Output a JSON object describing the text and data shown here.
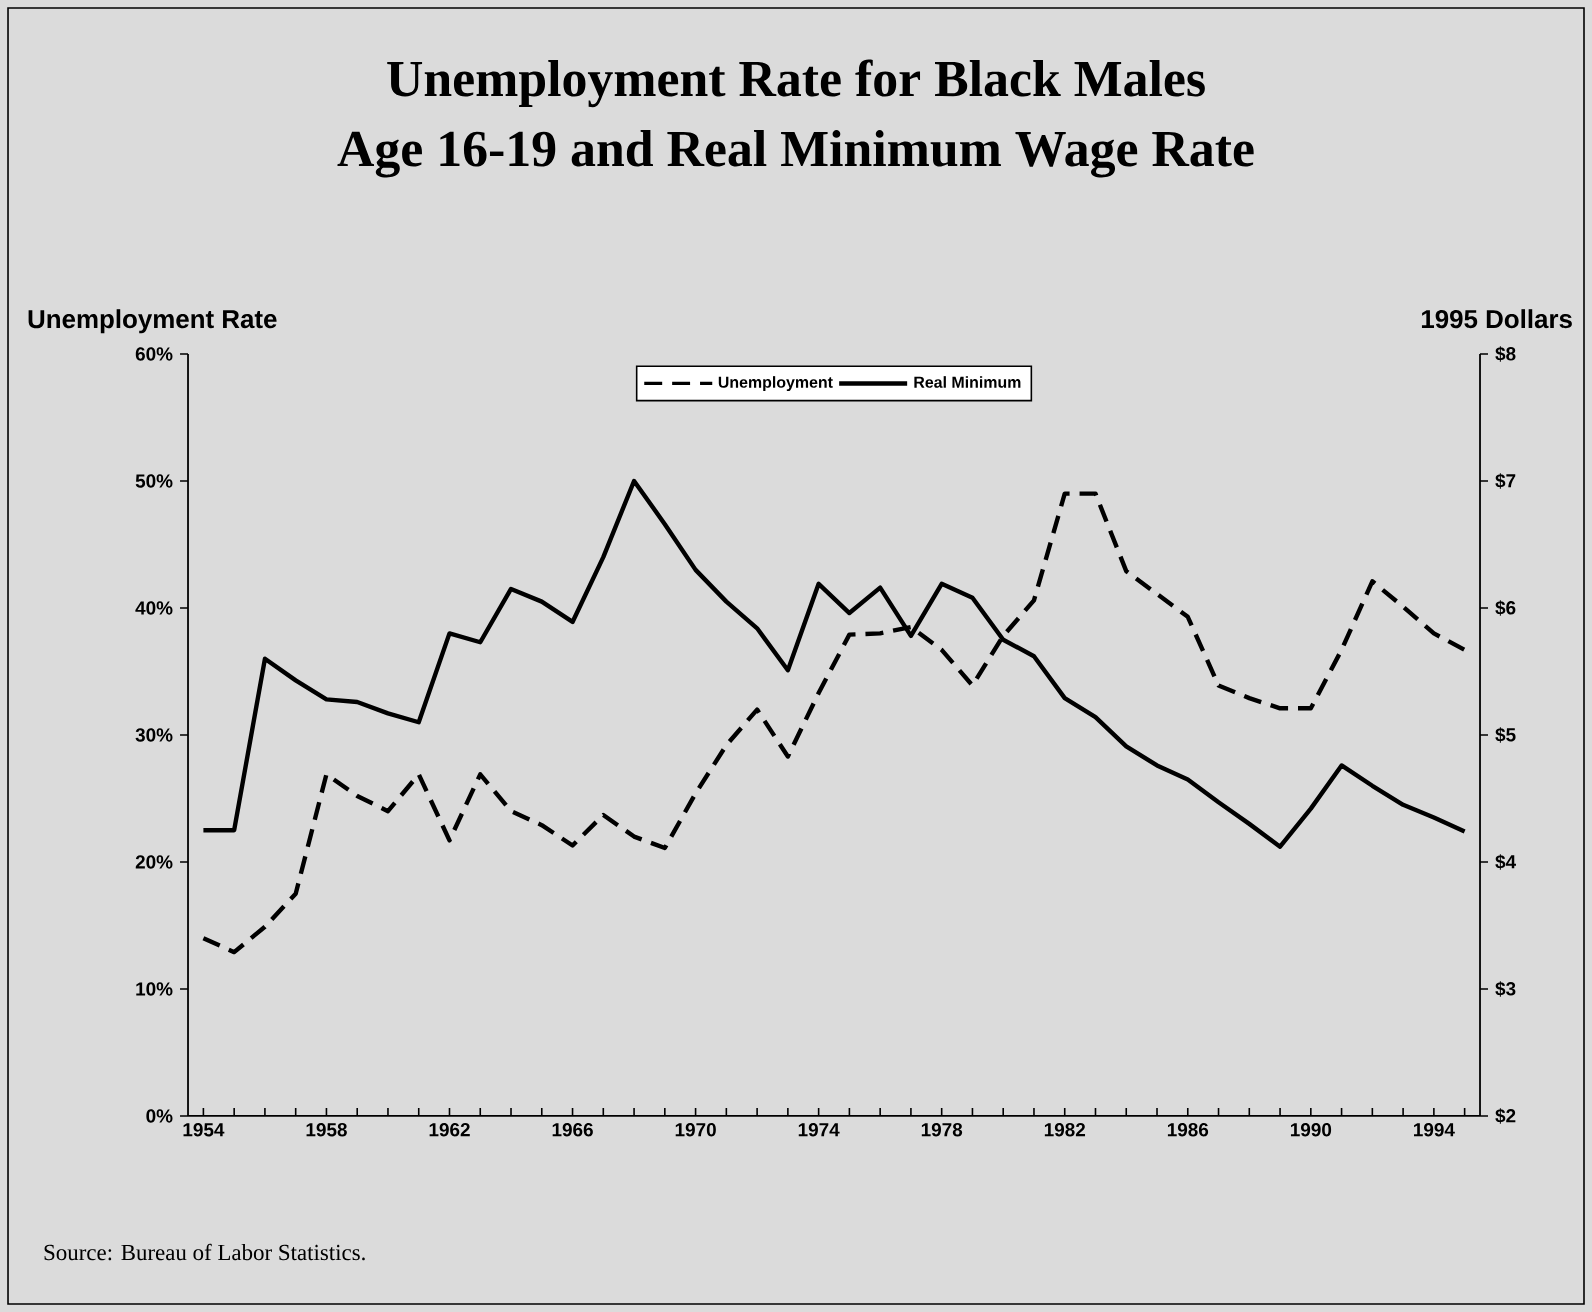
{
  "chart_data": {
    "type": "line",
    "title": "Unemployment Rate for Black Males",
    "subtitle": "Age 16-19 and Real Minimum Wage Rate",
    "ylabel": "Unemployment Rate",
    "y2label": "1995 Dollars",
    "x": [
      1954,
      1955,
      1956,
      1957,
      1958,
      1959,
      1960,
      1961,
      1962,
      1963,
      1964,
      1965,
      1966,
      1967,
      1968,
      1969,
      1970,
      1971,
      1972,
      1973,
      1974,
      1975,
      1976,
      1977,
      1978,
      1979,
      1980,
      1981,
      1982,
      1983,
      1984,
      1985,
      1986,
      1987,
      1988,
      1989,
      1990,
      1991,
      1992,
      1993,
      1994,
      1995
    ],
    "series": [
      {
        "name": "Unemployment",
        "color": "#000000",
        "line_style": "dashed",
        "axis": "y",
        "values": [
          14.0,
          12.9,
          14.9,
          17.5,
          26.9,
          25.2,
          24.0,
          26.9,
          21.7,
          26.9,
          24.0,
          22.9,
          21.3,
          23.7,
          22.0,
          21.1,
          25.4,
          29.2,
          32.0,
          28.3,
          33.3,
          37.9,
          38.0,
          38.5,
          36.7,
          33.9,
          37.8,
          40.6,
          49.0,
          49.0,
          42.9,
          41.1,
          39.3,
          33.9,
          32.9,
          32.1,
          32.1,
          36.7,
          42.1,
          40.1,
          38.0,
          36.7
        ]
      },
      {
        "name": "Real Minimum",
        "color": "#000000",
        "line_style": "solid",
        "axis": "y2",
        "values": [
          4.25,
          4.25,
          5.6,
          5.43,
          5.28,
          5.26,
          5.17,
          5.1,
          5.8,
          5.73,
          6.15,
          6.05,
          5.89,
          6.4,
          7.0,
          6.66,
          6.3,
          6.05,
          5.84,
          5.51,
          6.19,
          5.96,
          6.16,
          5.78,
          6.19,
          6.08,
          5.75,
          5.62,
          5.29,
          5.14,
          4.91,
          4.76,
          4.65,
          4.47,
          4.3,
          4.12,
          4.42,
          4.76,
          4.6,
          4.45,
          4.35,
          4.24
        ]
      }
    ],
    "xlim": [
      1953.5,
      1995.5
    ],
    "xticks": [
      1954,
      {
        "value": 1955,
        "label": null
      },
      {
        "value": 1956,
        "label": null
      },
      {
        "value": 1957,
        "label": null
      },
      1958,
      {
        "value": 1959,
        "label": null
      },
      {
        "value": 1960,
        "label": null
      },
      {
        "value": 1961,
        "label": null
      },
      1962,
      {
        "value": 1963,
        "label": null
      },
      {
        "value": 1964,
        "label": null
      },
      {
        "value": 1965,
        "label": null
      },
      1966,
      {
        "value": 1967,
        "label": null
      },
      {
        "value": 1968,
        "label": null
      },
      {
        "value": 1969,
        "label": null
      },
      1970,
      {
        "value": 1971,
        "label": null
      },
      {
        "value": 1972,
        "label": null
      },
      {
        "value": 1973,
        "label": null
      },
      1974,
      {
        "value": 1975,
        "label": null
      },
      {
        "value": 1976,
        "label": null
      },
      {
        "value": 1977,
        "label": null
      },
      1978,
      {
        "value": 1979,
        "label": null
      },
      {
        "value": 1980,
        "label": null
      },
      {
        "value": 1981,
        "label": null
      },
      1982,
      {
        "value": 1983,
        "label": null
      },
      {
        "value": 1984,
        "label": null
      },
      {
        "value": 1985,
        "label": null
      },
      1986,
      {
        "value": 1987,
        "label": null
      },
      {
        "value": 1988,
        "label": null
      },
      {
        "value": 1989,
        "label": null
      },
      1990,
      {
        "value": 1991,
        "label": null
      },
      {
        "value": 1992,
        "label": null
      },
      {
        "value": 1993,
        "label": null
      },
      1994,
      {
        "value": 1995,
        "label": null
      }
    ],
    "ylim": [
      0,
      60
    ],
    "yticks": [
      {
        "value": 0,
        "label": "0%"
      },
      {
        "value": 10,
        "label": "10%"
      },
      {
        "value": 20,
        "label": "20%"
      },
      {
        "value": 30,
        "label": "30%"
      },
      {
        "value": 40,
        "label": "40%"
      },
      {
        "value": 50,
        "label": "50%"
      },
      {
        "value": 60,
        "label": "60%"
      }
    ],
    "y2lim": [
      2,
      8
    ],
    "y2ticks": [
      {
        "value": 2,
        "label": "$2"
      },
      {
        "value": 3,
        "label": "$3"
      },
      {
        "value": 4,
        "label": "$4"
      },
      {
        "value": 5,
        "label": "$5"
      },
      {
        "value": 6,
        "label": "$6"
      },
      {
        "value": 7,
        "label": "$7"
      },
      {
        "value": 8,
        "label": "$8"
      }
    ],
    "legend": "top",
    "annotations": [
      "Source:  Bureau of Labor Statistics."
    ]
  }
}
